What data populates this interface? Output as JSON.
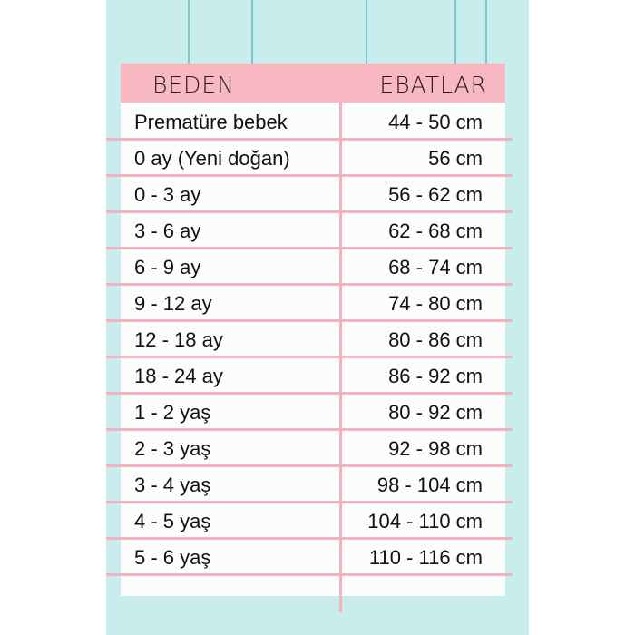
{
  "header": {
    "size_label": "BEDEN",
    "measure_label": "EBATLAR"
  },
  "rows": [
    {
      "size": "Prematüre bebek",
      "measure": "44 - 50 cm"
    },
    {
      "size": "0 ay (Yeni doğan)",
      "measure": "56 cm"
    },
    {
      "size": "0 - 3 ay",
      "measure": "56 - 62 cm"
    },
    {
      "size": "3 - 6 ay",
      "measure": "62 - 68 cm"
    },
    {
      "size": "6 - 9 ay",
      "measure": "68 - 74 cm"
    },
    {
      "size": "9 - 12 ay",
      "measure": "74 - 80 cm"
    },
    {
      "size": "12 - 18 ay",
      "measure": "80 - 86 cm"
    },
    {
      "size": "18 - 24 ay",
      "measure": "86 - 92 cm"
    },
    {
      "size": "1 - 2 yaş",
      "measure": "80 - 92 cm"
    },
    {
      "size": "2 - 3 yaş",
      "measure": "92 - 98 cm"
    },
    {
      "size": "3 - 4 yaş",
      "measure": "98 - 104 cm"
    },
    {
      "size": "4 - 5 yaş",
      "measure": "104 - 110 cm"
    },
    {
      "size": "5 - 6 yaş",
      "measure": "110 - 116 cm"
    }
  ],
  "colors": {
    "background": "#c9ecec",
    "header": "#f7b8c2",
    "lines": "#f3b2bd"
  }
}
